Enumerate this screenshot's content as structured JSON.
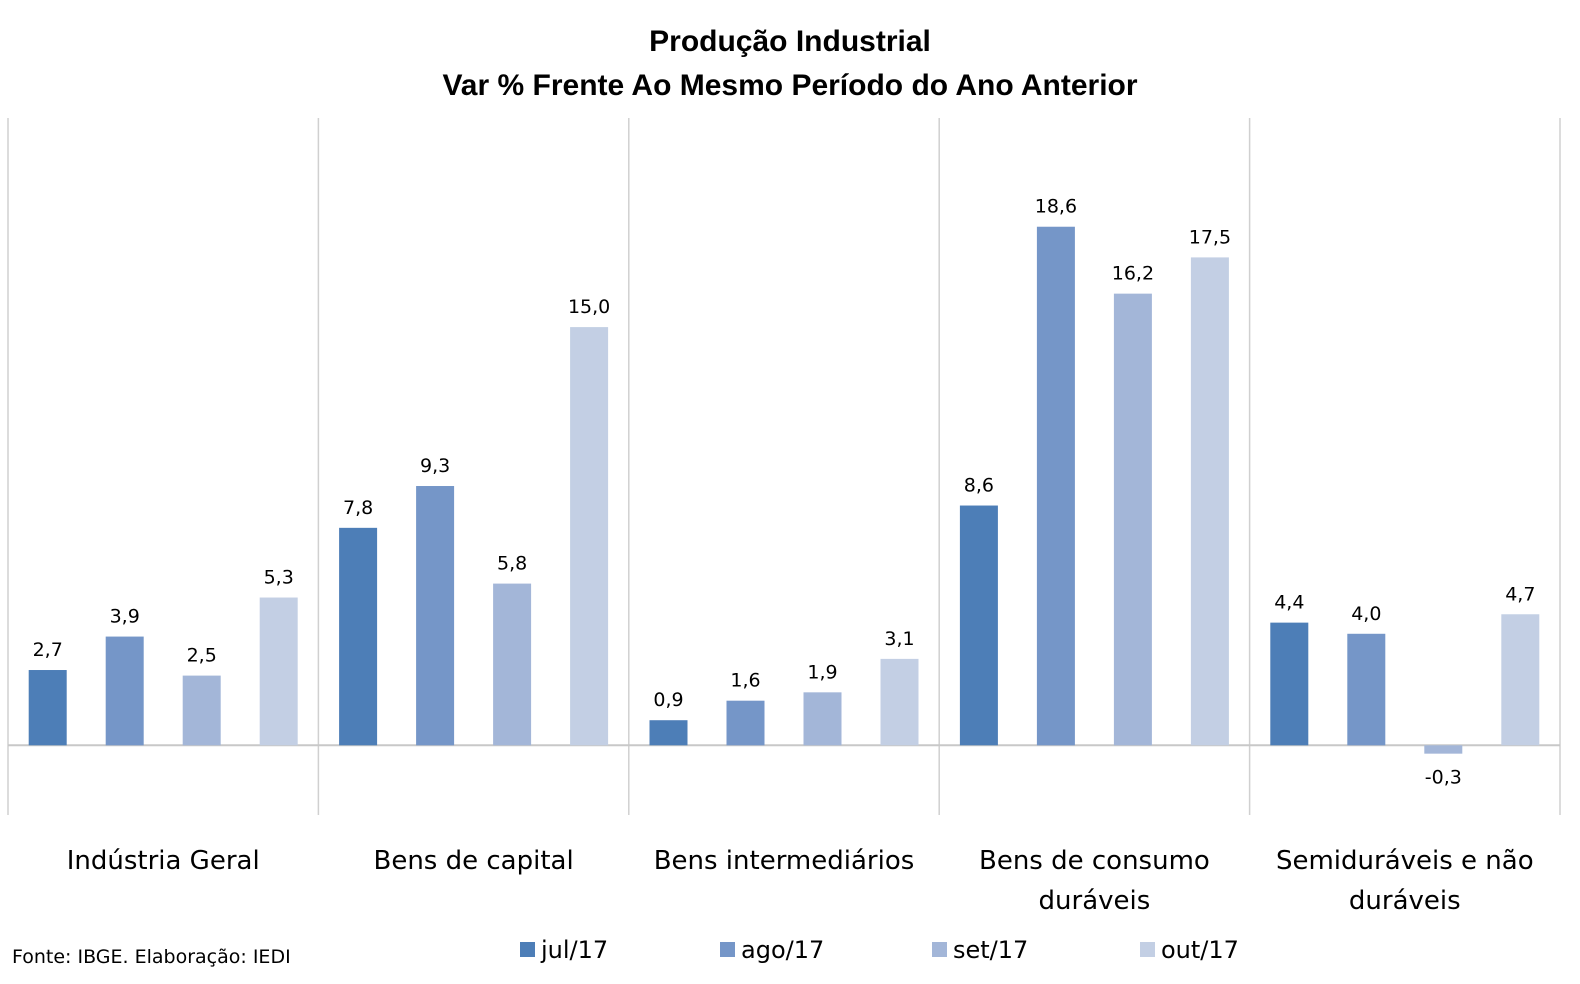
{
  "chart_data": {
    "type": "bar",
    "title_lines": [
      "Produção Industrial",
      "Var % Frente Ao Mesmo Período do Ano Anterior"
    ],
    "categories": [
      [
        "Indústria Geral"
      ],
      [
        "Bens de capital"
      ],
      [
        "Bens intermediários"
      ],
      [
        "Bens de consumo",
        "duráveis"
      ],
      [
        "Semiduráveis e não",
        "duráveis"
      ]
    ],
    "series": [
      {
        "name": "jul/17",
        "color": "#4d7eb7",
        "values": [
          2.7,
          7.8,
          0.9,
          8.6,
          4.4
        ],
        "labels": [
          "2,7",
          "7,8",
          "0,9",
          "8,6",
          "4,4"
        ]
      },
      {
        "name": "ago/17",
        "color": "#7596c8",
        "values": [
          3.9,
          9.3,
          1.6,
          18.6,
          4.0
        ],
        "labels": [
          "3,9",
          "9,3",
          "1,6",
          "18,6",
          "4,0"
        ]
      },
      {
        "name": "set/17",
        "color": "#a3b6d8",
        "values": [
          2.5,
          5.8,
          1.9,
          16.2,
          -0.3
        ],
        "labels": [
          "2,5",
          "5,8",
          "1,9",
          "16,2",
          "-0,3"
        ]
      },
      {
        "name": "out/17",
        "color": "#c3cfe4",
        "values": [
          5.3,
          15.0,
          3.1,
          17.5,
          4.7
        ],
        "labels": [
          "5,3",
          "15,0",
          "3,1",
          "17,5",
          "4,7"
        ]
      }
    ],
    "ylim": [
      -2.5,
      22.5
    ],
    "grid": false,
    "legend_position": "bottom",
    "source": "Fonte: IBGE. Elaboração: IEDI"
  }
}
